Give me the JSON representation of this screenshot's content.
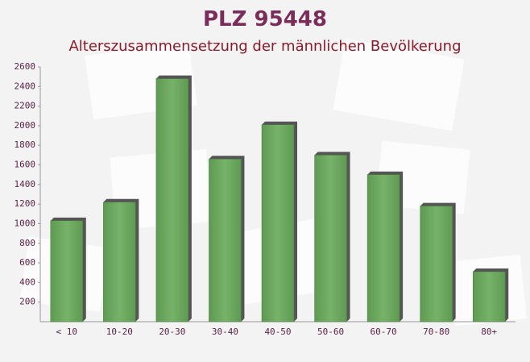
{
  "chart_data": {
    "type": "bar",
    "title": "PLZ 95448",
    "subtitle": "Alterszusammensetzung der männlichen Bevölkerung",
    "categories": [
      "< 10",
      "10-20",
      "20-30",
      "30-40",
      "40-50",
      "50-60",
      "60-70",
      "70-80",
      "80+"
    ],
    "values": [
      1030,
      1220,
      2480,
      1660,
      2010,
      1700,
      1500,
      1180,
      510
    ],
    "color": "#6aa55c",
    "ylim": [
      0,
      2600
    ],
    "yticks": [
      200,
      400,
      600,
      800,
      1000,
      1200,
      1400,
      1600,
      1800,
      2000,
      2200,
      2400,
      2600
    ],
    "grid": false
  }
}
